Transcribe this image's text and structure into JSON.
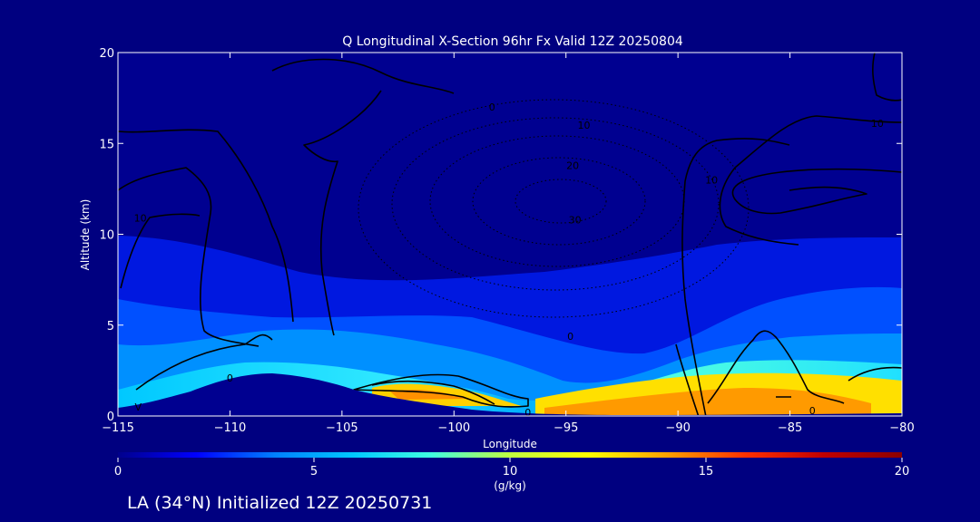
{
  "chart_data": {
    "type": "contour-section",
    "title": "Q Longitudinal X-Section 96hr  Fx Valid 12Z 20250804",
    "xlabel": "Longitude",
    "ylabel": "Altitude (km)",
    "xlim": [
      -115,
      -80
    ],
    "ylim": [
      0,
      20
    ],
    "x_ticks": [
      -115,
      -110,
      -105,
      -100,
      -95,
      -90,
      -85,
      -80
    ],
    "x_tick_labels": [
      "−115",
      "−110",
      "−105",
      "−100",
      "−95",
      "−90",
      "−85",
      "−80"
    ],
    "y_ticks": [
      0,
      5,
      10,
      15,
      20
    ],
    "y_tick_labels": [
      "0",
      "5",
      "10",
      "15",
      "20"
    ],
    "filled_field": "specific humidity",
    "contour_labels": [
      {
        "text": "0",
        "lon": -98.3,
        "alt": 17.0
      },
      {
        "text": "10",
        "lon": -114.0,
        "alt": 10.9
      },
      {
        "text": "0",
        "lon": -110.0,
        "alt": 2.1
      },
      {
        "text": "0",
        "lon": -94.8,
        "alt": 4.4
      },
      {
        "text": "10",
        "lon": -94.2,
        "alt": 16.0
      },
      {
        "text": "20",
        "lon": -94.7,
        "alt": 13.8
      },
      {
        "text": "30",
        "lon": -94.6,
        "alt": 10.8
      },
      {
        "text": "0",
        "lon": -96.7,
        "alt": 0.2
      },
      {
        "text": "10",
        "lon": -81.1,
        "alt": 16.1
      },
      {
        "text": "10",
        "lon": -88.5,
        "alt": 13.0
      },
      {
        "text": "0",
        "lon": -84.0,
        "alt": 0.3
      },
      {
        "text": "V",
        "lon": -114.1,
        "alt": 0.5
      }
    ],
    "colorbar": {
      "min": 0,
      "max": 20,
      "ticks": [
        0,
        5,
        10,
        15,
        20
      ],
      "tick_labels": [
        "0",
        "5",
        "10",
        "15",
        "20"
      ],
      "label": "(g/kg)",
      "colors": [
        "#00008c",
        "#0000ff",
        "#0080ff",
        "#00c8ff",
        "#40ffe0",
        "#c0ff40",
        "#ffff00",
        "#ffa000",
        "#ff3000",
        "#c00000",
        "#8b0000"
      ]
    },
    "footer": "LA (34°N) Initialized 12Z 20250731"
  }
}
